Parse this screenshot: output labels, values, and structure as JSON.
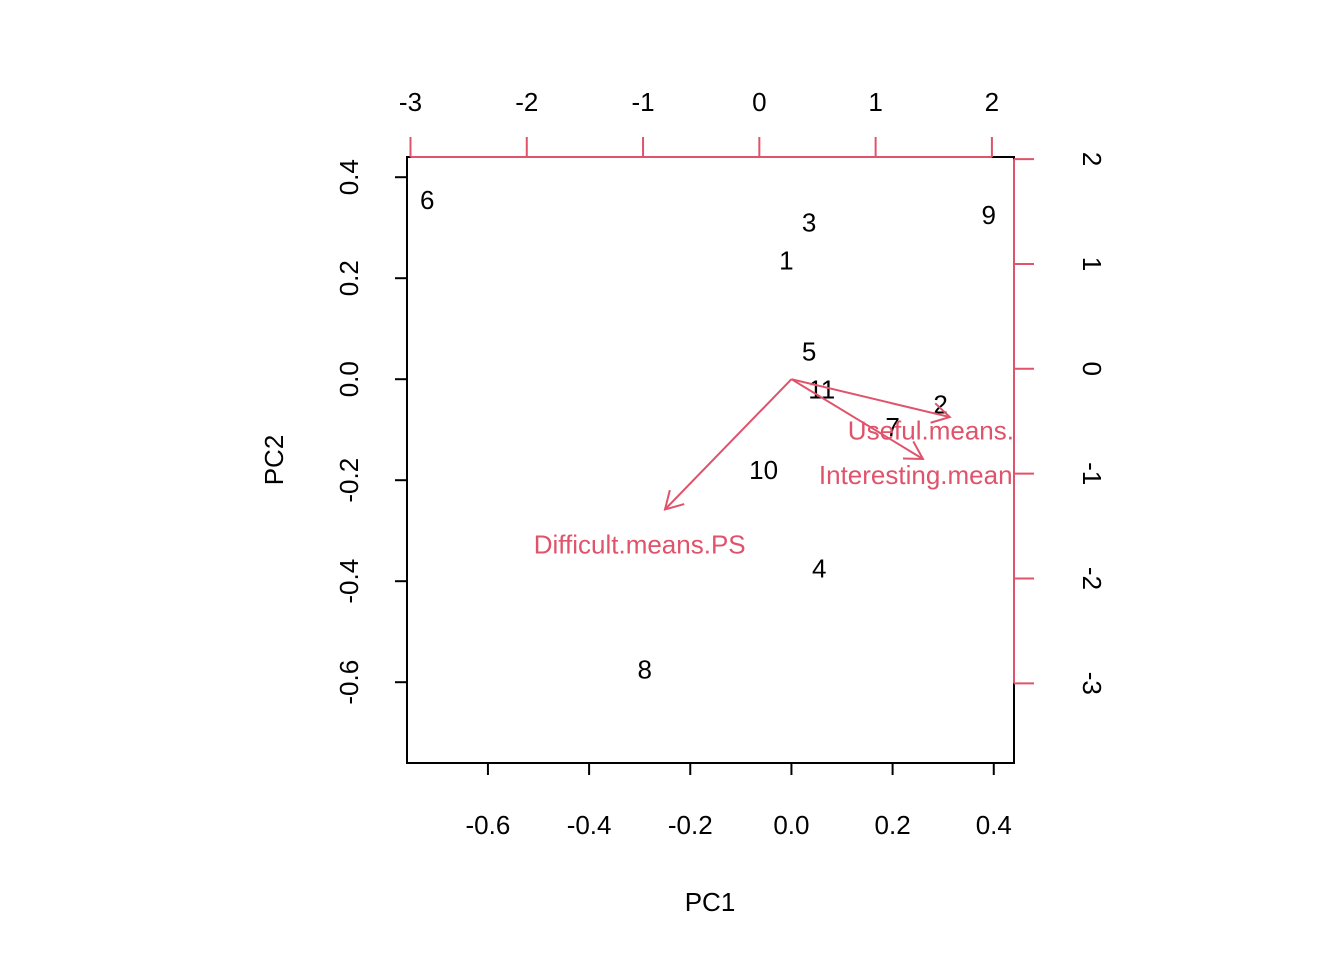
{
  "chart_data": {
    "type": "scatter",
    "subtype": "biplot",
    "xlabel": "PC1",
    "ylabel": "PC2",
    "grid": false,
    "primary_axes": {
      "xlim": [
        -0.76,
        0.44
      ],
      "ylim": [
        -0.76,
        0.44
      ],
      "x_ticks": [
        "-0.6",
        "-0.4",
        "-0.2",
        "0.0",
        "0.2",
        "0.4"
      ],
      "y_ticks": [
        "-0.6",
        "-0.4",
        "-0.2",
        "0.0",
        "0.2",
        "0.4"
      ]
    },
    "secondary_axes": {
      "color": "#DF536B",
      "xlim": [
        -3.03,
        2.19
      ],
      "ylim": [
        -3.76,
        2.02
      ],
      "x_ticks": [
        "-3",
        "-2",
        "-1",
        "0",
        "1",
        "2"
      ],
      "y_ticks": [
        "-3",
        "-2",
        "-1",
        "0",
        "1",
        "2"
      ]
    },
    "points": [
      {
        "label": "1",
        "x": -0.01,
        "y": 0.235
      },
      {
        "label": "2",
        "x": 0.295,
        "y": -0.05
      },
      {
        "label": "3",
        "x": 0.035,
        "y": 0.31
      },
      {
        "label": "4",
        "x": 0.055,
        "y": -0.375
      },
      {
        "label": "5",
        "x": 0.035,
        "y": 0.055
      },
      {
        "label": "6",
        "x": -0.72,
        "y": 0.355
      },
      {
        "label": "7",
        "x": 0.2,
        "y": -0.095
      },
      {
        "label": "8",
        "x": -0.29,
        "y": -0.575
      },
      {
        "label": "9",
        "x": 0.39,
        "y": 0.325
      },
      {
        "label": "10",
        "x": -0.055,
        "y": -0.18
      },
      {
        "label": "11",
        "x": 0.06,
        "y": -0.02
      }
    ],
    "loadings": [
      {
        "label": "Useful.means.PS",
        "x": 0.313,
        "y": -0.075
      },
      {
        "label": "Interesting.means.PS",
        "x": 0.26,
        "y": -0.158
      },
      {
        "label": "Difficult.means.PS",
        "x": -0.25,
        "y": -0.258
      }
    ],
    "loading_labels": [
      {
        "label": "Useful.means.PS",
        "x": 0.31,
        "y": -0.102
      },
      {
        "label": "Interesting.means.PS",
        "x": 0.3,
        "y": -0.19
      },
      {
        "label": "Difficult.means.PS",
        "x": -0.3,
        "y": -0.327
      }
    ]
  }
}
